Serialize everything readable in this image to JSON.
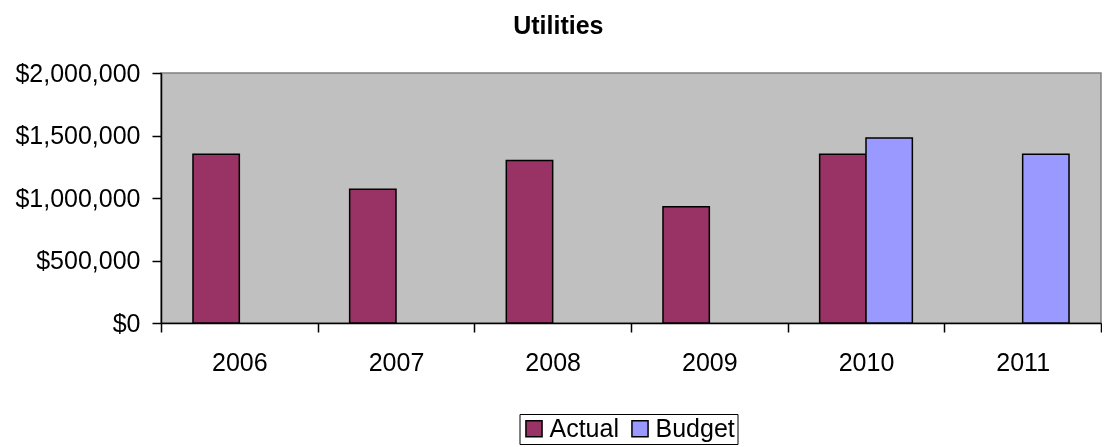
{
  "chart_data": {
    "type": "bar",
    "title": "Utilities",
    "categories": [
      "2006",
      "2007",
      "2008",
      "2009",
      "2010",
      "2011"
    ],
    "series": [
      {
        "name": "Actual",
        "color": "#993366",
        "values": [
          1350000,
          1070000,
          1300000,
          930000,
          1350000,
          null
        ]
      },
      {
        "name": "Budget",
        "color": "#9999ff",
        "values": [
          null,
          null,
          null,
          null,
          1480000,
          1350000
        ]
      }
    ],
    "ylim": [
      0,
      2000000
    ],
    "yticks": [
      {
        "value": 0,
        "label": "$0"
      },
      {
        "value": 500000,
        "label": "$500,000"
      },
      {
        "value": 1000000,
        "label": "$1,000,000"
      },
      {
        "value": 1500000,
        "label": "$1,500,000"
      },
      {
        "value": 2000000,
        "label": "$2,000,000"
      }
    ],
    "grid": false,
    "legend": "bottom"
  }
}
